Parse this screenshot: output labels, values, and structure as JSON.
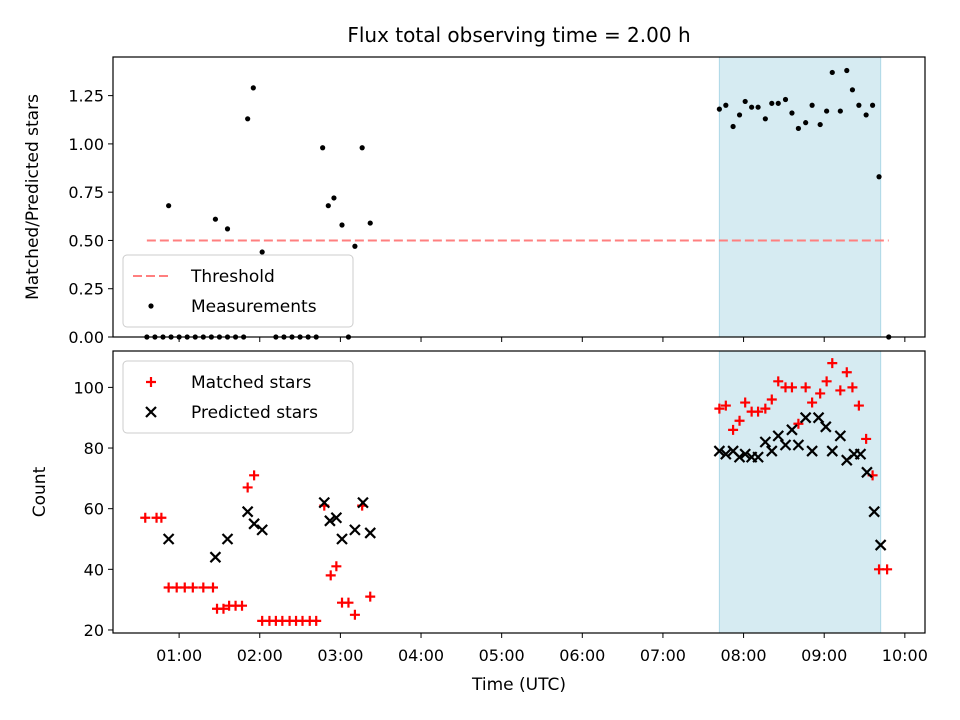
{
  "title": "Flux total observing time = 2.00 h",
  "xlabel": "Time (UTC)",
  "x_ticks": [
    "01:00",
    "02:00",
    "03:00",
    "04:00",
    "05:00",
    "06:00",
    "07:00",
    "08:00",
    "09:00",
    "10:00"
  ],
  "x_range_hours": [
    0.18,
    10.25
  ],
  "highlight_span_hours": [
    7.7,
    9.7
  ],
  "colors": {
    "matched": "#ff0000",
    "predicted": "#000000",
    "threshold": "#ff7f7f",
    "span": "#add8e6"
  },
  "chart_data": [
    {
      "type": "scatter",
      "ylabel": "Matched/Predicted stars",
      "ylim": [
        0,
        1.45
      ],
      "y_ticks": [
        "0.00",
        "0.25",
        "0.50",
        "0.75",
        "1.00",
        "1.25"
      ],
      "legend_position": "lower-left",
      "threshold": {
        "name": "Threshold",
        "value": 0.5,
        "x_range": [
          0.6,
          9.8
        ]
      },
      "series": [
        {
          "name": "Measurements",
          "x": [
            0.6,
            0.7,
            0.8,
            0.9,
            1.0,
            1.1,
            1.2,
            1.3,
            1.4,
            1.5,
            1.6,
            1.7,
            1.8,
            2.2,
            2.3,
            2.4,
            2.5,
            2.6,
            2.7,
            3.1,
            9.8,
            0.87,
            1.45,
            1.6,
            1.85,
            1.92,
            2.03,
            2.78,
            2.85,
            2.92,
            3.02,
            3.18,
            3.27,
            3.37,
            7.7,
            7.78,
            7.87,
            7.95,
            8.02,
            8.1,
            8.18,
            8.27,
            8.35,
            8.43,
            8.52,
            8.6,
            8.68,
            8.77,
            8.85,
            8.95,
            9.03,
            9.1,
            9.2,
            9.28,
            9.35,
            9.43,
            9.52,
            9.6,
            9.68
          ],
          "y": [
            0,
            0,
            0,
            0,
            0,
            0,
            0,
            0,
            0,
            0,
            0,
            0,
            0,
            0,
            0,
            0,
            0,
            0,
            0,
            0,
            0,
            0.68,
            0.61,
            0.56,
            1.13,
            1.29,
            0.44,
            0.98,
            0.68,
            0.72,
            0.58,
            0.47,
            0.98,
            0.59,
            1.18,
            1.2,
            1.09,
            1.15,
            1.22,
            1.19,
            1.19,
            1.13,
            1.21,
            1.21,
            1.23,
            1.16,
            1.08,
            1.11,
            1.2,
            1.1,
            1.17,
            1.37,
            1.17,
            1.38,
            1.28,
            1.2,
            1.15,
            1.2,
            0.83
          ]
        }
      ]
    },
    {
      "type": "scatter",
      "ylabel": "Count",
      "ylim": [
        19,
        112
      ],
      "y_ticks": [
        "20",
        "40",
        "60",
        "80",
        "100"
      ],
      "legend_position": "upper-left",
      "series": [
        {
          "name": "Matched stars",
          "marker": "plus",
          "x": [
            0.58,
            0.72,
            0.78,
            0.87,
            0.97,
            1.07,
            1.17,
            1.3,
            1.42,
            1.47,
            1.55,
            1.62,
            1.7,
            1.78,
            1.85,
            1.93,
            2.03,
            2.12,
            2.2,
            2.28,
            2.37,
            2.45,
            2.53,
            2.62,
            2.7,
            2.8,
            2.88,
            2.95,
            3.02,
            3.1,
            3.18,
            3.27,
            3.37,
            7.7,
            7.78,
            7.87,
            7.95,
            8.02,
            8.1,
            8.18,
            8.27,
            8.35,
            8.43,
            8.52,
            8.6,
            8.68,
            8.77,
            8.85,
            8.95,
            9.03,
            9.1,
            9.2,
            9.28,
            9.35,
            9.43,
            9.52,
            9.6,
            9.68,
            9.78
          ],
          "y": [
            57,
            57,
            57,
            34,
            34,
            34,
            34,
            34,
            34,
            27,
            27,
            28,
            28,
            28,
            67,
            71,
            23,
            23,
            23,
            23,
            23,
            23,
            23,
            23,
            23,
            61,
            38,
            41,
            29,
            29,
            25,
            61,
            31,
            93,
            94,
            86,
            89,
            95,
            92,
            92,
            93,
            96,
            102,
            100,
            100,
            88,
            100,
            95,
            98,
            102,
            108,
            99,
            105,
            100,
            94,
            83,
            71,
            40,
            40
          ]
        },
        {
          "name": "Predicted stars",
          "marker": "x",
          "x": [
            0.87,
            1.45,
            1.6,
            1.85,
            1.93,
            2.03,
            2.8,
            2.87,
            2.95,
            3.02,
            3.18,
            3.28,
            3.37,
            7.7,
            7.78,
            7.87,
            7.95,
            8.02,
            8.1,
            8.18,
            8.27,
            8.35,
            8.43,
            8.52,
            8.6,
            8.68,
            8.77,
            8.85,
            8.93,
            9.02,
            9.1,
            9.2,
            9.28,
            9.37,
            9.45,
            9.53,
            9.62,
            9.7
          ],
          "y": [
            50,
            44,
            50,
            59,
            55,
            53,
            62,
            56,
            57,
            50,
            53,
            62,
            52,
            79,
            78,
            79,
            77,
            78,
            77,
            77,
            82,
            79,
            84,
            81,
            86,
            81,
            90,
            79,
            90,
            87,
            79,
            84,
            76,
            78,
            78,
            72,
            59,
            48
          ]
        }
      ]
    }
  ]
}
